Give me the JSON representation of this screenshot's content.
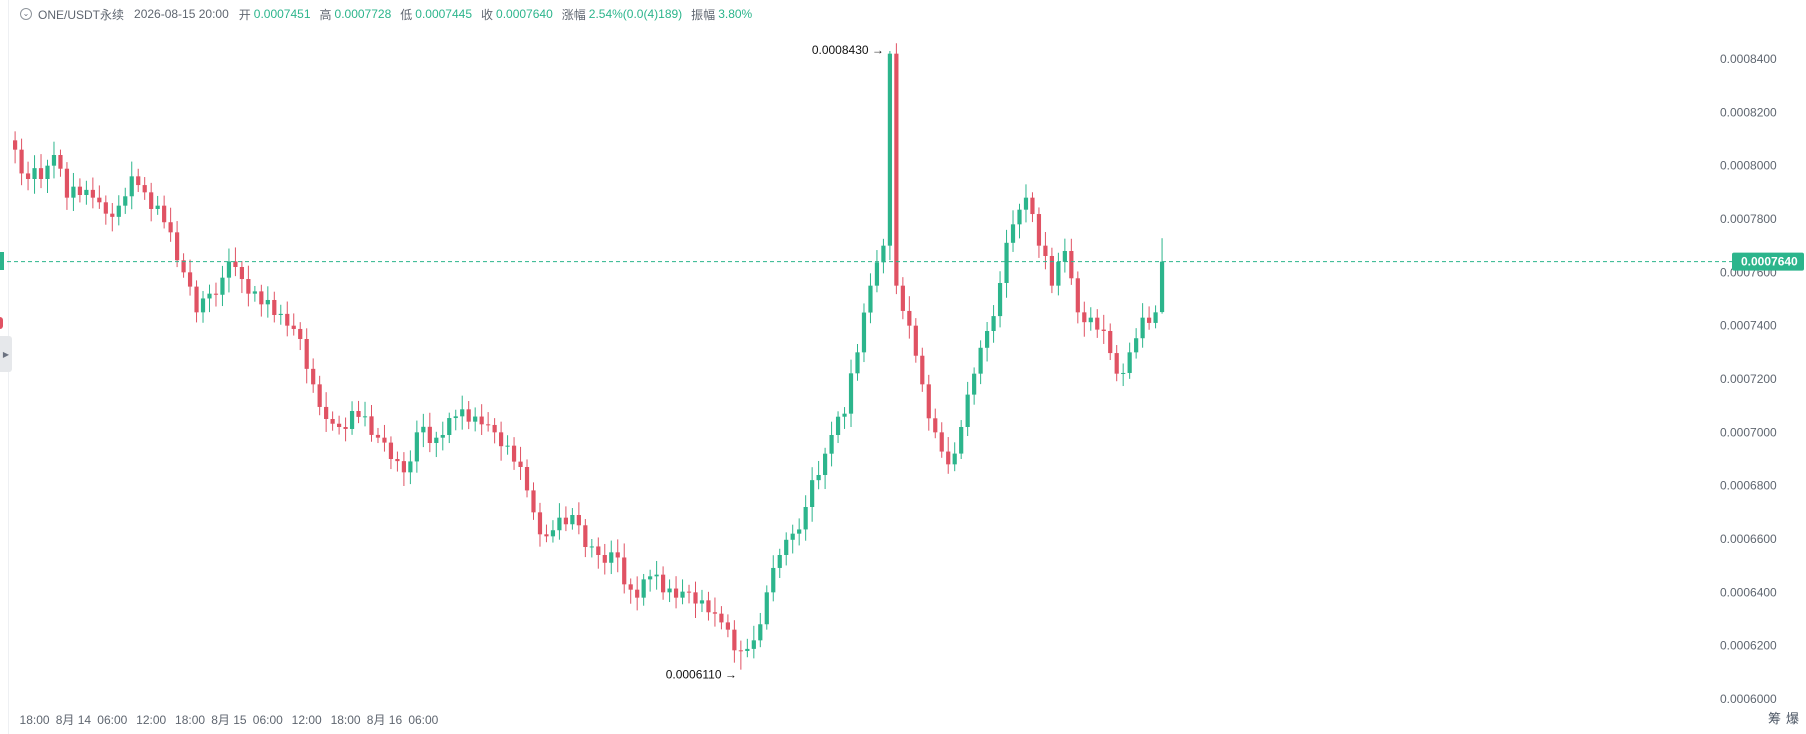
{
  "header": {
    "symbol": "ONE/USDT永续",
    "datetime": "2026-08-15 20:00",
    "open_label": "开",
    "open_value": "0.0007451",
    "high_label": "高",
    "high_value": "0.0007728",
    "low_label": "低",
    "low_value": "0.0007445",
    "close_label": "收",
    "close_value": "0.0007640",
    "change_label": "涨幅",
    "change_value": "2.54%(0.0(4)189)",
    "amplitude_label": "振幅",
    "amplitude_value": "3.80%"
  },
  "corner_tabs": [
    "筹",
    "爆"
  ],
  "chart_data": {
    "type": "candlestick",
    "interval_hours": 1,
    "start": "2026-08-13 15:00",
    "y_ticks": [
      "0.0006000",
      "0.0006200",
      "0.0006400",
      "0.0006600",
      "0.0006800",
      "0.0007000",
      "0.0007200",
      "0.0007400",
      "0.0007600",
      "0.0007800",
      "0.0008000",
      "0.0008200",
      "0.0008400"
    ],
    "x_ticks": [
      {
        "label": "18:00",
        "datetime": "2026-08-13 18:00"
      },
      {
        "label": "8月 14",
        "datetime": "2026-08-14 00:00"
      },
      {
        "label": "06:00",
        "datetime": "2026-08-14 06:00"
      },
      {
        "label": "12:00",
        "datetime": "2026-08-14 12:00"
      },
      {
        "label": "18:00",
        "datetime": "2026-08-14 18:00"
      },
      {
        "label": "8月 15",
        "datetime": "2026-08-15 00:00"
      },
      {
        "label": "06:00",
        "datetime": "2026-08-15 06:00"
      },
      {
        "label": "12:00",
        "datetime": "2026-08-15 12:00"
      },
      {
        "label": "18:00",
        "datetime": "2026-08-15 18:00"
      },
      {
        "label": "8月 16",
        "datetime": "2026-08-16 00:00"
      },
      {
        "label": "06:00",
        "datetime": "2026-08-16 06:00"
      }
    ],
    "last_price": 0.000764,
    "last_price_label": "0.0007640",
    "max_label": "0.0008430",
    "min_label": "0.0006110",
    "colors": {
      "up": "#2cb58c",
      "down": "#e05263"
    },
    "legend": "none",
    "anchors": [
      [
        0,
        0.000806
      ],
      [
        2,
        0.000795
      ],
      [
        4,
        0.000795
      ],
      [
        6,
        0.000804
      ],
      [
        8,
        0.000788
      ],
      [
        10,
        0.000789
      ],
      [
        12,
        0.000788
      ],
      [
        14,
        0.000782
      ],
      [
        16,
        0.000785
      ],
      [
        18,
        0.000796
      ],
      [
        20,
        0.00079
      ],
      [
        22,
        0.000785
      ],
      [
        24,
        0.000775
      ],
      [
        26,
        0.00076
      ],
      [
        28,
        0.000745
      ],
      [
        30,
        0.000752
      ],
      [
        32,
        0.000758
      ],
      [
        34,
        0.000762
      ],
      [
        36,
        0.000752
      ],
      [
        38,
        0.000748
      ],
      [
        40,
        0.000744
      ],
      [
        42,
        0.00074
      ],
      [
        44,
        0.000735
      ],
      [
        46,
        0.000718
      ],
      [
        48,
        0.000705
      ],
      [
        50,
        0.000702
      ],
      [
        52,
        0.000708
      ],
      [
        54,
        0.000706
      ],
      [
        56,
        0.000698
      ],
      [
        58,
        0.00069
      ],
      [
        60,
        0.000685
      ],
      [
        62,
        0.0007
      ],
      [
        64,
        0.000696
      ],
      [
        66,
        0.000699
      ],
      [
        68,
        0.000706
      ],
      [
        70,
        0.000704
      ],
      [
        72,
        0.000703
      ],
      [
        74,
        0.0007
      ],
      [
        76,
        0.000695
      ],
      [
        78,
        0.000687
      ],
      [
        80,
        0.00067
      ],
      [
        82,
        0.000661
      ],
      [
        84,
        0.000668
      ],
      [
        86,
        0.000669
      ],
      [
        88,
        0.000657
      ],
      [
        90,
        0.000654
      ],
      [
        92,
        0.000655
      ],
      [
        94,
        0.000643
      ],
      [
        96,
        0.000638
      ],
      [
        98,
        0.000646
      ],
      [
        100,
        0.00064
      ],
      [
        102,
        0.000638
      ],
      [
        104,
        0.00064
      ],
      [
        106,
        0.000637
      ],
      [
        108,
        0.000632
      ],
      [
        110,
        0.000626
      ],
      [
        112,
        0.000618
      ],
      [
        114,
        0.000622
      ],
      [
        116,
        0.00064
      ],
      [
        118,
        0.000654
      ],
      [
        120,
        0.000662
      ],
      [
        122,
        0.000672
      ],
      [
        124,
        0.000684
      ],
      [
        126,
        0.000699
      ],
      [
        128,
        0.000707
      ],
      [
        130,
        0.00073
      ],
      [
        132,
        0.000755
      ],
      [
        134,
        0.00077
      ],
      [
        135,
        0.000842
      ],
      [
        136,
        0.000755
      ],
      [
        138,
        0.00074
      ],
      [
        140,
        0.000718
      ],
      [
        142,
        0.0007
      ],
      [
        144,
        0.000688
      ],
      [
        146,
        0.000702
      ],
      [
        148,
        0.000722
      ],
      [
        150,
        0.000738
      ],
      [
        152,
        0.000756
      ],
      [
        154,
        0.000778
      ],
      [
        156,
        0.000788
      ],
      [
        158,
        0.00077
      ],
      [
        160,
        0.000755
      ],
      [
        162,
        0.000768
      ],
      [
        164,
        0.000745
      ],
      [
        166,
        0.000743
      ],
      [
        168,
        0.000738
      ],
      [
        170,
        0.000722
      ],
      [
        172,
        0.00073
      ],
      [
        174,
        0.000743
      ],
      [
        176,
        0.000745
      ],
      [
        177,
        0.000764
      ]
    ],
    "noise": [
      0.35,
      -0.62,
      0.18,
      0.74,
      -0.41,
      0.09,
      -0.83,
      0.52,
      -0.17,
      0.66,
      -0.29,
      0.44,
      -0.71,
      0.23,
      0.58,
      -0.49,
      0.12,
      -0.36,
      0.81,
      -0.05,
      0.27,
      -0.68,
      0.47,
      -0.22,
      0.63,
      -0.54,
      0.15,
      0.39,
      -0.77,
      0.31
    ]
  }
}
